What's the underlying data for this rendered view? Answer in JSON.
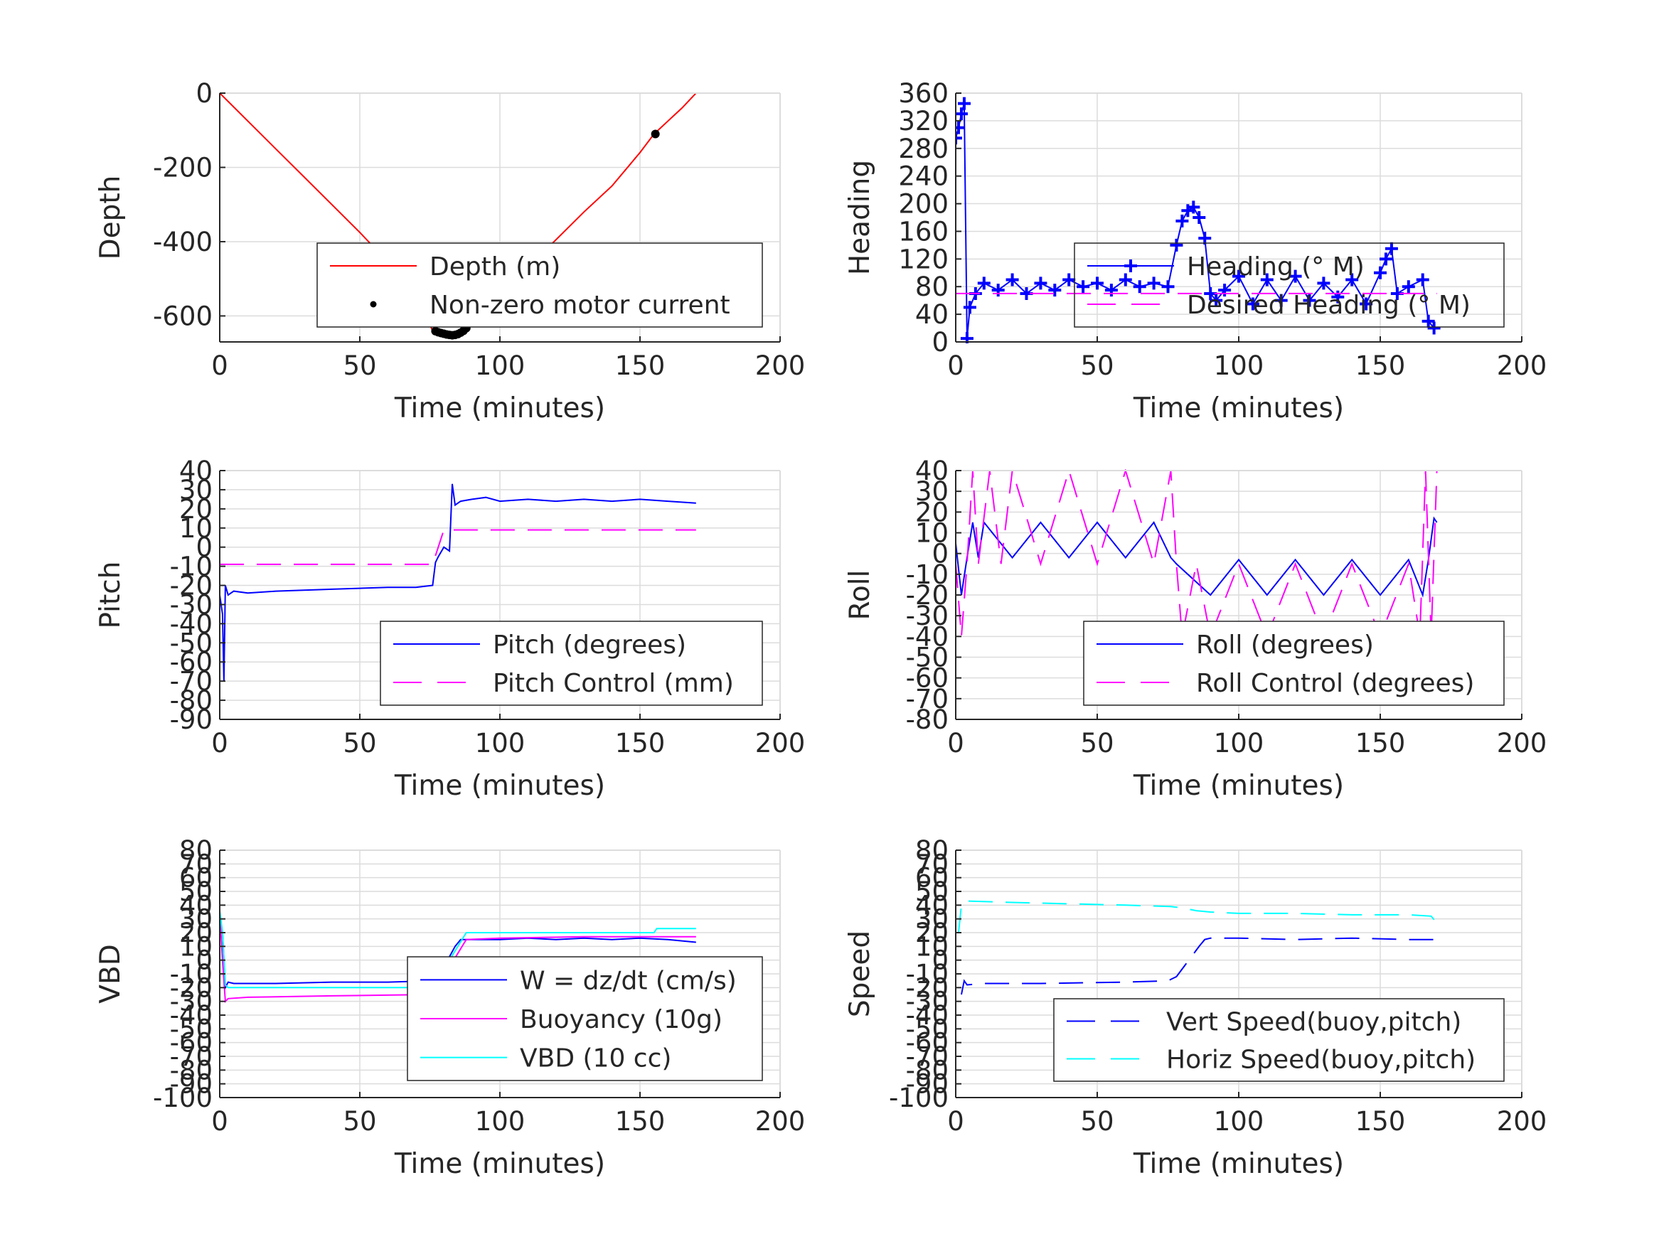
{
  "colors": {
    "red": "#ff0000",
    "blue": "#0000ff",
    "magenta": "#ff00ff",
    "cyan": "#00ffff",
    "black": "#000000",
    "grid": "#dcdcdc",
    "axis": "#262626"
  },
  "chart_data": [
    {
      "id": "depth",
      "type": "line",
      "xlabel": "Time (minutes)",
      "ylabel": "Depth",
      "xlim": [
        0,
        200
      ],
      "ylim": [
        -670,
        0
      ],
      "xticks": [
        0,
        50,
        100,
        150,
        200
      ],
      "yticks": [
        -600,
        -400,
        -200,
        0
      ],
      "grid": true,
      "legend_position": "lower-right",
      "series": [
        {
          "name": "Depth (m)",
          "style": "solid",
          "color": "#ff0000",
          "x": [
            0,
            10,
            20,
            30,
            40,
            50,
            60,
            70,
            76,
            80,
            84,
            88,
            92,
            100,
            110,
            120,
            130,
            140,
            150,
            155,
            160,
            165,
            170
          ],
          "y": [
            0,
            -75,
            -150,
            -225,
            -300,
            -375,
            -455,
            -540,
            -640,
            -648,
            -652,
            -645,
            -600,
            -540,
            -470,
            -395,
            -320,
            -250,
            -160,
            -110,
            -75,
            -40,
            0
          ]
        },
        {
          "name": "Non-zero motor current",
          "style": "markers-dot",
          "color": "#000000",
          "x": [
            77,
            78,
            79,
            80,
            81,
            82,
            83,
            84,
            85,
            86,
            87,
            88,
            155.5
          ],
          "y": [
            -641,
            -644,
            -646,
            -648,
            -650,
            -651,
            -652,
            -651,
            -649,
            -645,
            -640,
            -633,
            -110
          ]
        }
      ]
    },
    {
      "id": "heading",
      "type": "line",
      "xlabel": "Time (minutes)",
      "ylabel": "Heading",
      "xlim": [
        0,
        200
      ],
      "ylim": [
        0,
        360
      ],
      "xticks": [
        0,
        50,
        100,
        150,
        200
      ],
      "yticks": [
        0,
        40,
        80,
        120,
        160,
        200,
        240,
        280,
        320,
        360
      ],
      "grid": true,
      "legend_position": "lower-right",
      "series": [
        {
          "name": "Heading (° M)",
          "style": "markers-plus",
          "color": "#0000ff",
          "x": [
            0,
            1,
            2,
            3,
            4,
            5,
            7,
            10,
            15,
            20,
            25,
            30,
            35,
            40,
            45,
            50,
            55,
            60,
            65,
            70,
            75,
            78,
            80,
            82,
            84,
            86,
            88,
            90,
            92,
            95,
            100,
            105,
            110,
            115,
            120,
            125,
            130,
            135,
            140,
            145,
            150,
            152,
            154,
            156,
            160,
            165,
            167,
            169
          ],
          "y": [
            295,
            310,
            330,
            345,
            5,
            50,
            70,
            85,
            75,
            90,
            70,
            85,
            75,
            90,
            80,
            85,
            75,
            90,
            80,
            85,
            80,
            140,
            175,
            190,
            195,
            180,
            150,
            70,
            60,
            75,
            95,
            55,
            90,
            60,
            95,
            60,
            85,
            65,
            90,
            55,
            100,
            120,
            135,
            70,
            80,
            90,
            30,
            20
          ]
        },
        {
          "name": "Desired Heading (° M)",
          "style": "dashed",
          "color": "#ff00ff",
          "x": [
            0,
            170
          ],
          "y": [
            70,
            70
          ]
        }
      ]
    },
    {
      "id": "pitch",
      "type": "line",
      "xlabel": "Time (minutes)",
      "ylabel": "Pitch",
      "xlim": [
        0,
        200
      ],
      "ylim": [
        -90,
        40
      ],
      "xticks": [
        0,
        50,
        100,
        150,
        200
      ],
      "yticks": [
        -90,
        -80,
        -70,
        -60,
        -50,
        -40,
        -30,
        -20,
        -10,
        0,
        10,
        20,
        30,
        40
      ],
      "grid": true,
      "legend_position": "lower-right",
      "series": [
        {
          "name": "Pitch (degrees)",
          "style": "solid",
          "color": "#0000ff",
          "x": [
            0,
            1,
            1.5,
            2,
            3,
            5,
            10,
            20,
            40,
            60,
            70,
            76,
            77,
            78,
            80,
            82,
            83,
            84,
            86,
            90,
            95,
            100,
            110,
            120,
            130,
            140,
            150,
            160,
            170
          ],
          "y": [
            -25,
            -35,
            -70,
            -20,
            -25,
            -23,
            -24,
            -23,
            -22,
            -21,
            -21,
            -20,
            -8,
            -5,
            0,
            -2,
            33,
            22,
            24,
            25,
            26,
            24,
            25,
            24,
            25,
            24,
            25,
            24,
            23
          ]
        },
        {
          "name": "Pitch Control (mm)",
          "style": "dashed",
          "color": "#ff00ff",
          "x": [
            0,
            76,
            80,
            170
          ],
          "y": [
            -9,
            -9,
            9,
            9
          ]
        }
      ]
    },
    {
      "id": "roll",
      "type": "line",
      "xlabel": "Time (minutes)",
      "ylabel": "Roll",
      "xlim": [
        0,
        200
      ],
      "ylim": [
        -80,
        40
      ],
      "xticks": [
        0,
        50,
        100,
        150,
        200
      ],
      "yticks": [
        -80,
        -70,
        -60,
        -50,
        -40,
        -30,
        -20,
        -10,
        0,
        10,
        20,
        30,
        40
      ],
      "grid": true,
      "legend_position": "lower-right",
      "series": [
        {
          "name": "Roll (degrees)",
          "style": "solid",
          "color": "#0000ff",
          "x": [
            0,
            2,
            4,
            6,
            8,
            10,
            20,
            30,
            40,
            50,
            60,
            70,
            76,
            78,
            90,
            100,
            110,
            120,
            130,
            140,
            150,
            160,
            165,
            167,
            169,
            170
          ],
          "y": [
            5,
            -20,
            -2,
            15,
            -2,
            15,
            -2,
            15,
            -2,
            15,
            -2,
            15,
            -2,
            -5,
            -20,
            -3,
            -20,
            -3,
            -20,
            -3,
            -20,
            -3,
            -20,
            -3,
            17,
            15
          ]
        },
        {
          "name": "Roll Control (degrees)",
          "style": "dashed",
          "color": "#ff00ff",
          "x": [
            0,
            2,
            4,
            6,
            8,
            12,
            16,
            20,
            30,
            40,
            50,
            60,
            70,
            76,
            78,
            80,
            85,
            90,
            100,
            110,
            120,
            130,
            140,
            150,
            160,
            164,
            166,
            168,
            170
          ],
          "y": [
            -5,
            -40,
            -5,
            40,
            -5,
            40,
            -5,
            40,
            -5,
            40,
            -5,
            40,
            -5,
            40,
            -5,
            -40,
            -5,
            -40,
            -5,
            -40,
            -5,
            -40,
            -5,
            -40,
            -5,
            -40,
            40,
            -40,
            40
          ]
        }
      ]
    },
    {
      "id": "vbd",
      "type": "line",
      "xlabel": "Time (minutes)",
      "ylabel": "VBD",
      "xlim": [
        0,
        200
      ],
      "ylim": [
        -100,
        80
      ],
      "xticks": [
        0,
        50,
        100,
        150,
        200
      ],
      "yticks": [
        -100,
        -90,
        -80,
        -70,
        -60,
        -50,
        -40,
        -30,
        -20,
        -10,
        0,
        10,
        20,
        30,
        40,
        50,
        60,
        70,
        80
      ],
      "yticklabels": [
        "-100",
        "-90",
        "-80",
        "-70",
        "-60",
        "-50",
        "-40",
        "-30",
        "-20",
        "-10",
        "0",
        "10",
        "20",
        "30",
        "40",
        "50",
        "60",
        "70",
        "80"
      ],
      "grid": true,
      "legend_position": "lower-right",
      "series": [
        {
          "name": "W = dz/dt (cm/s)",
          "style": "solid",
          "color": "#0000ff",
          "x": [
            0,
            1,
            2,
            3,
            5,
            20,
            40,
            60,
            76,
            77,
            80,
            84,
            86,
            90,
            100,
            110,
            120,
            130,
            140,
            150,
            160,
            170
          ],
          "y": [
            30,
            20,
            -20,
            -16,
            -17,
            -17,
            -16,
            -16,
            -15,
            -12,
            -5,
            10,
            15,
            15,
            15,
            16,
            15,
            16,
            15,
            16,
            15,
            13
          ]
        },
        {
          "name": "Buoyancy (10g)",
          "style": "solid",
          "color": "#ff00ff",
          "x": [
            0,
            1,
            2,
            3,
            10,
            40,
            76,
            88,
            100,
            130,
            155,
            170
          ],
          "y": [
            35,
            0,
            -30,
            -28,
            -27,
            -26,
            -25,
            15,
            16,
            17,
            17,
            17
          ]
        },
        {
          "name": "VBD (10 cc)",
          "style": "solid",
          "color": "#00ffff",
          "x": [
            0,
            1,
            2,
            3,
            10,
            40,
            76,
            88,
            155,
            156,
            170
          ],
          "y": [
            36,
            20,
            -18,
            -20,
            -20,
            -20,
            -20,
            20,
            20,
            23,
            23
          ]
        }
      ]
    },
    {
      "id": "speed",
      "type": "line",
      "xlabel": "Time (minutes)",
      "ylabel": "Speed",
      "xlim": [
        0,
        200
      ],
      "ylim": [
        -100,
        80
      ],
      "xticks": [
        0,
        50,
        100,
        150,
        200
      ],
      "yticks": [
        -100,
        -90,
        -80,
        -70,
        -60,
        -50,
        -40,
        -30,
        -20,
        -10,
        0,
        10,
        20,
        30,
        40,
        50,
        60,
        70,
        80
      ],
      "yticklabels": [
        "-100",
        "-90",
        "-80",
        "-70",
        "-60",
        "-50",
        "-40",
        "-30",
        "-20",
        "-10",
        "0",
        "10",
        "20",
        "30",
        "40",
        "50",
        "60",
        "70",
        "80"
      ],
      "grid": true,
      "legend_position": "lower-right",
      "series": [
        {
          "name": "Vert Speed(buoy,pitch)",
          "style": "dashed",
          "color": "#0000ff",
          "x": [
            2,
            3,
            4,
            10,
            30,
            60,
            75,
            78,
            86,
            88,
            90,
            100,
            120,
            140,
            160,
            170
          ],
          "y": [
            -25,
            -15,
            -18,
            -17,
            -17,
            -16,
            -15,
            -12,
            10,
            15,
            16,
            16,
            15,
            16,
            15,
            15
          ]
        },
        {
          "name": "Horiz Speed(buoy,pitch)",
          "style": "dashed",
          "color": "#00ffff",
          "x": [
            1,
            2,
            3,
            20,
            40,
            60,
            76,
            80,
            85,
            90,
            100,
            120,
            140,
            160,
            168,
            170
          ],
          "y": [
            20,
            40,
            43,
            42,
            41,
            40,
            39,
            38,
            36,
            35,
            34,
            34,
            33,
            33,
            32,
            27
          ]
        }
      ]
    }
  ]
}
